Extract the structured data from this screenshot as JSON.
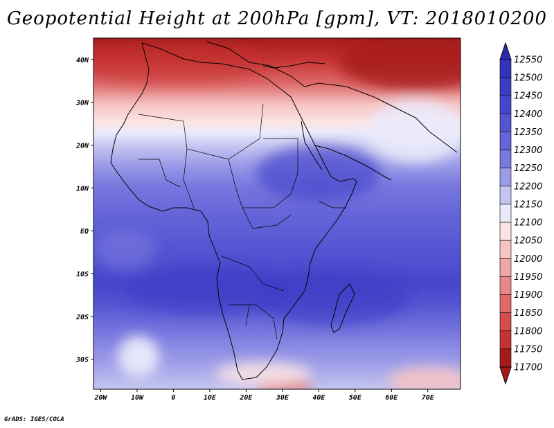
{
  "title": "Geopotential Height at 200hPa [gpm], VT: 2018010200",
  "credit": "GrADS: IGES/COLA",
  "map": {
    "lon_labels": [
      "20W",
      "10W",
      "0",
      "10E",
      "20E",
      "30E",
      "40E",
      "50E",
      "60E",
      "70E"
    ],
    "lon_values": [
      -20,
      -10,
      0,
      10,
      20,
      30,
      40,
      50,
      60,
      70
    ],
    "lat_labels": [
      "40N",
      "30N",
      "20N",
      "10N",
      "EQ",
      "10S",
      "20S",
      "30S"
    ],
    "lat_values": [
      40,
      30,
      20,
      10,
      0,
      -10,
      -20,
      -30
    ],
    "lon_range": [
      -22,
      79
    ],
    "lat_range": [
      -37,
      45
    ]
  },
  "colorbar": {
    "levels": [
      "12550",
      "12500",
      "12450",
      "12400",
      "12350",
      "12300",
      "12250",
      "12200",
      "12150",
      "12100",
      "12050",
      "12000",
      "11950",
      "11900",
      "11850",
      "11800",
      "11750",
      "11700"
    ],
    "colors": [
      "#2b2bb0",
      "#3232bb",
      "#3c3cc4",
      "#4646cc",
      "#5555d3",
      "#6565d9",
      "#7878df",
      "#9c9ce8",
      "#c4c4f1",
      "#eaeafb",
      "#fbe4e4",
      "#f6c4c4",
      "#efa6a6",
      "#e78787",
      "#de6a6a",
      "#d44d4d",
      "#c53333",
      "#a51b1b"
    ]
  }
}
